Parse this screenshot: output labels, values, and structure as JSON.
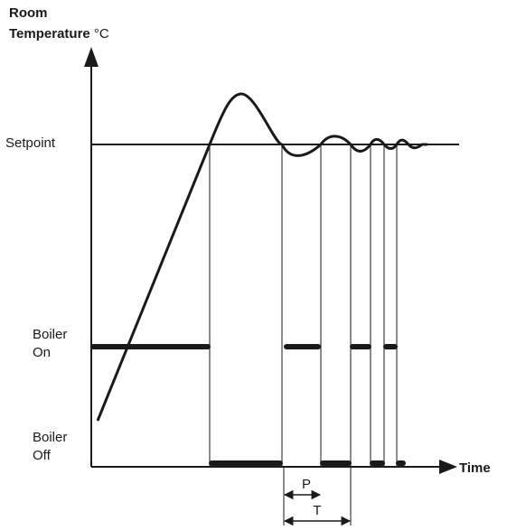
{
  "y_axis": {
    "title_line1": "Room",
    "title_line2_bold": "Temperature",
    "title_line2_unit": " °C"
  },
  "x_axis": {
    "label": "Time"
  },
  "levels": {
    "setpoint": "Setpoint",
    "boiler_on_line1": "Boiler",
    "boiler_on_line2": "On",
    "boiler_off_line1": "Boiler",
    "boiler_off_line2": "Off"
  },
  "intervals": {
    "period_short": "P",
    "period_long": "T"
  }
}
